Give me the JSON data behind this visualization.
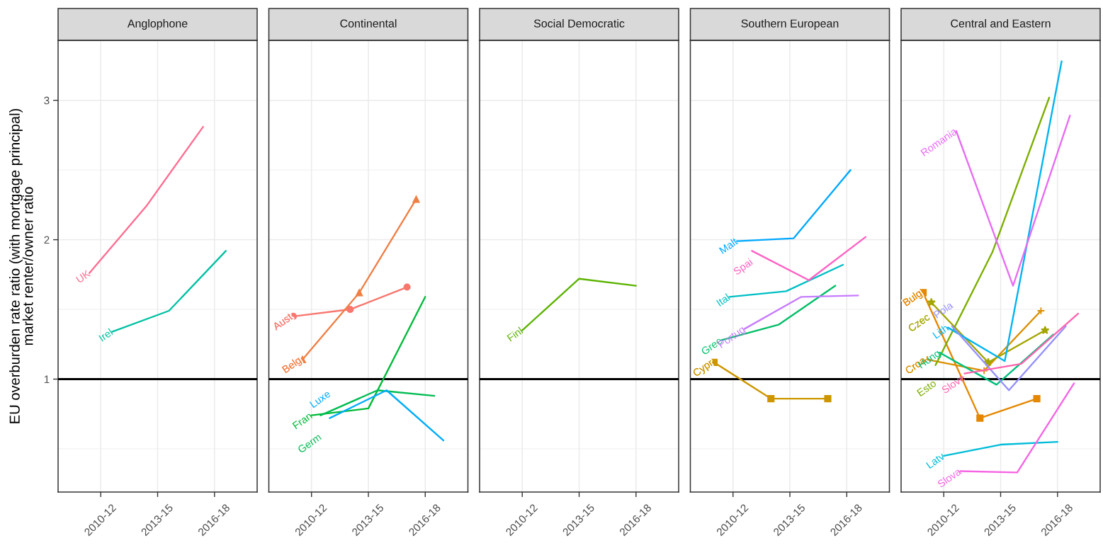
{
  "chart_data": [
    {
      "type": "line",
      "title": "Anglophone",
      "ylabel": "EU overburden rate ratio (with mortgage principal)\nmarket renter/owner ratio",
      "categories": [
        "2010-12",
        "2013-15",
        "2016-18"
      ],
      "ylim": [
        0.19,
        3.43
      ],
      "yticks": [
        1,
        2,
        3
      ],
      "grid": true,
      "ref_lines": [
        {
          "axis": "y",
          "value": 1,
          "color": "#000000"
        }
      ],
      "series": [
        {
          "name": "UK",
          "color": "#FF6C91",
          "values": [
            1.76,
            2.24,
            2.81
          ]
        },
        {
          "name": "Irel",
          "color": "#00C1A3",
          "values": [
            1.34,
            1.49,
            1.92
          ]
        }
      ]
    },
    {
      "type": "line",
      "title": "Continental",
      "tick_labels": "x",
      "categories": [
        "2010-12",
        "2013-15",
        "2016-18"
      ],
      "ylim": [
        0.19,
        3.43
      ],
      "yticks": [
        1,
        2,
        3
      ],
      "grid": true,
      "ref_lines": [
        {
          "axis": "y",
          "value": 1,
          "color": "#000000"
        }
      ],
      "series": [
        {
          "name": "Aust",
          "color": "#F8766D",
          "marker": "circle",
          "values": [
            1.45,
            1.5,
            1.66
          ]
        },
        {
          "name": "Belg",
          "color": "#EF7F45",
          "marker": "triangle",
          "values": [
            1.14,
            1.62,
            2.29
          ]
        },
        {
          "name": "Fran",
          "color": "#00BA38",
          "values": [
            0.74,
            0.79,
            1.59
          ]
        },
        {
          "name": "Germ",
          "color": "#00BC52",
          "values": [
            0.74,
            0.92,
            0.88
          ]
        },
        {
          "name": "Luxe",
          "color": "#00ACFC",
          "values": [
            0.72,
            0.92,
            0.56
          ]
        }
      ]
    },
    {
      "type": "line",
      "title": "Social Democratic",
      "tick_labels": "x",
      "categories": [
        "2010-12",
        "2013-15",
        "2016-18"
      ],
      "ylim": [
        0.19,
        3.43
      ],
      "yticks": [
        1,
        2,
        3
      ],
      "grid": true,
      "ref_lines": [
        {
          "axis": "y",
          "value": 1,
          "color": "#000000"
        }
      ],
      "series": [
        {
          "name": "Finl",
          "color": "#5BB300",
          "values": [
            1.35,
            1.72,
            1.67
          ]
        }
      ]
    },
    {
      "type": "line",
      "title": "Southern European",
      "tick_labels": "x",
      "categories": [
        "2010-12",
        "2013-15",
        "2016-18"
      ],
      "ylim": [
        0.19,
        3.43
      ],
      "yticks": [
        1,
        2,
        3
      ],
      "grid": true,
      "ref_lines": [
        {
          "axis": "y",
          "value": 1,
          "color": "#000000"
        }
      ],
      "series": [
        {
          "name": "Cypr",
          "color": "#CD9600",
          "marker": "square",
          "values": [
            1.12,
            0.86,
            0.86
          ]
        },
        {
          "name": "Gree",
          "color": "#00BE67",
          "values": [
            1.28,
            1.39,
            1.67
          ]
        },
        {
          "name": "Ital",
          "color": "#00BFC4",
          "values": [
            1.59,
            1.63,
            1.82
          ]
        },
        {
          "name": "Malt",
          "color": "#00A9FF",
          "values": [
            1.99,
            2.01,
            2.5
          ]
        },
        {
          "name": "Portug",
          "color": "#C77CFF",
          "values": [
            1.36,
            1.59,
            1.6
          ]
        },
        {
          "name": "Spai",
          "color": "#FF61C3",
          "values": [
            1.92,
            1.71,
            2.02
          ]
        }
      ]
    },
    {
      "type": "line",
      "title": "Central and Eastern",
      "tick_labels": "x",
      "categories": [
        "2010-12",
        "2013-15",
        "2016-18"
      ],
      "ylim": [
        0.19,
        3.43
      ],
      "yticks": [
        1,
        2,
        3
      ],
      "grid": true,
      "ref_lines": [
        {
          "axis": "y",
          "value": 1,
          "color": "#000000"
        }
      ],
      "series": [
        {
          "name": "Bulg",
          "color": "#E58700",
          "marker": "square",
          "values": [
            1.62,
            0.72,
            0.86
          ]
        },
        {
          "name": "Croa",
          "color": "#DB8E00",
          "marker": "cross",
          "values": [
            1.14,
            1.06,
            1.49
          ]
        },
        {
          "name": "Czec",
          "color": "#A3A500",
          "marker": "star",
          "values": [
            1.55,
            1.12,
            1.35
          ]
        },
        {
          "name": "Esto",
          "color": "#7CAE00",
          "values": [
            1.1,
            1.91,
            3.02
          ]
        },
        {
          "name": "Hung",
          "color": "#00BF7D",
          "values": [
            1.19,
            0.96,
            1.32
          ]
        },
        {
          "name": "Latv",
          "color": "#00BCD8",
          "values": [
            0.45,
            0.53,
            0.55
          ]
        },
        {
          "name": "Lith",
          "color": "#00B4F0",
          "values": [
            1.37,
            1.13,
            3.28
          ]
        },
        {
          "name": "Pola",
          "color": "#9590FF",
          "values": [
            1.38,
            0.92,
            1.38
          ]
        },
        {
          "name": "Romania",
          "color": "#E76BF3",
          "values": [
            2.78,
            1.67,
            2.89
          ]
        },
        {
          "name": "Slova",
          "color": "#F564E3",
          "values": [
            0.34,
            0.33,
            0.97
          ]
        },
        {
          "name": "Slove",
          "color": "#FF64B0",
          "values": [
            1.04,
            1.11,
            1.47
          ]
        }
      ]
    }
  ]
}
